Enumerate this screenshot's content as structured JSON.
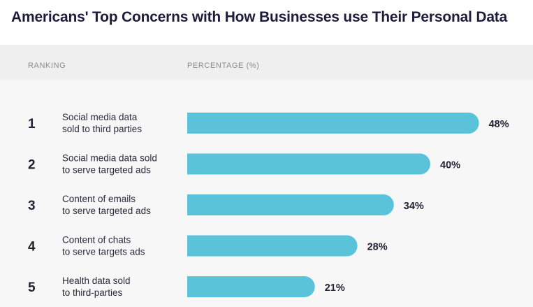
{
  "page": {
    "title": "Americans' Top Concerns with How Businesses use Their Personal Data"
  },
  "chart_data": {
    "type": "bar",
    "orientation": "horizontal",
    "title": "Americans' Top Concerns with How Businesses use Their Personal Data",
    "columns": {
      "ranking": "RANKING",
      "percentage": "PERCENTAGE (%)"
    },
    "bar_color": "#5bc3d9",
    "xlim": [
      0,
      50
    ],
    "items": [
      {
        "rank": "1",
        "lines": [
          "Social media data",
          "sold to third parties"
        ],
        "value": 48,
        "label": "48%"
      },
      {
        "rank": "2",
        "lines": [
          "Social media data sold",
          "to serve targeted ads"
        ],
        "value": 40,
        "label": "40%"
      },
      {
        "rank": "3",
        "lines": [
          "Content of emails",
          "to serve targeted ads"
        ],
        "value": 34,
        "label": "34%"
      },
      {
        "rank": "4",
        "lines": [
          "Content of chats",
          "to serve targets ads"
        ],
        "value": 28,
        "label": "28%"
      },
      {
        "rank": "5",
        "lines": [
          "Health data sold",
          "to third-parties"
        ],
        "value": 21,
        "label": "21%"
      }
    ]
  }
}
